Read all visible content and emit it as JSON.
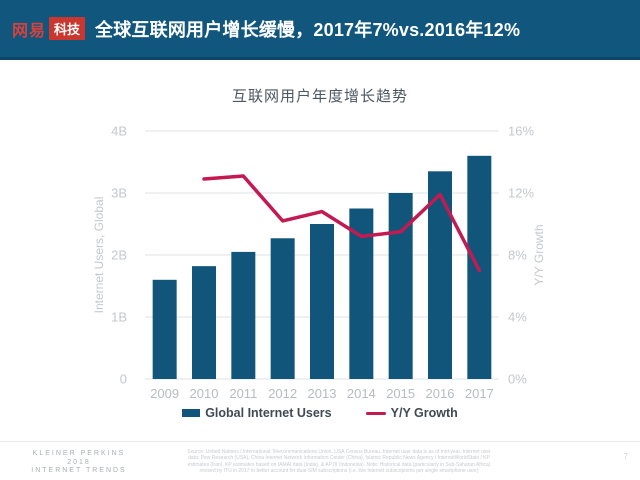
{
  "header": {
    "logo": {
      "brand": "网易",
      "badge": "科技"
    },
    "title": "全球互联网用户增长缓慢，2017年7%vs.2016年12%"
  },
  "chart_data": {
    "type": "bar",
    "title": "互联网用户年度增长趋势",
    "categories": [
      "2009",
      "2010",
      "2011",
      "2012",
      "2013",
      "2014",
      "2015",
      "2016",
      "2017"
    ],
    "series": [
      {
        "name": "Global Internet Users",
        "type": "bar",
        "axis": "left",
        "values": [
          1.6,
          1.82,
          2.05,
          2.27,
          2.5,
          2.75,
          3.0,
          3.35,
          3.6
        ]
      },
      {
        "name": "Y/Y Growth",
        "type": "line",
        "axis": "right",
        "values": [
          null,
          12.9,
          13.1,
          10.2,
          10.8,
          9.2,
          9.5,
          11.9,
          7.0
        ]
      }
    ],
    "left_axis": {
      "label": "Internet Users, Global",
      "ticks": [
        "0",
        "1B",
        "2B",
        "3B",
        "4B"
      ],
      "max": 4
    },
    "right_axis": {
      "label": "Y/Y Growth",
      "ticks": [
        "0%",
        "4%",
        "8%",
        "12%",
        "16%"
      ],
      "max": 16
    },
    "legend_position": "bottom",
    "grid": "horizontal",
    "colors": {
      "bar": "#11567a",
      "line": "#c41a52",
      "grid": "#e5e7e9",
      "tick": "#c4c8cc",
      "axis_title": "#c4c8cc",
      "x_label": "#b7bcc1"
    }
  },
  "footer": {
    "brand_lines": [
      "KLEINER PERKINS",
      "2018",
      "INTERNET TRENDS"
    ],
    "source_lines": [
      "Source: United Nations / International Telecommunications Union, USA Census Bureau. Internet user data is as of mid-year. Internet user",
      "data: Pew Research (USA), China Internet Network Information Center (China), Islamic Republic News Agency / InternetWorldStats / KP",
      "estimates (Iran), KP estimates based on IAMAI data (India), & APJII (Indonesia). Note: Historical data (particularly in Sub-Saharan Africa)",
      "revised by ITU in 2017 to better account for dual-SIM subscriptions (i.e. live Internet subscriptions per single smartphone user)"
    ],
    "page_number": "7"
  },
  "colors": {
    "header_bg": "#11567d",
    "header_border": "#0c4766",
    "logo_red": "#c9372f"
  }
}
